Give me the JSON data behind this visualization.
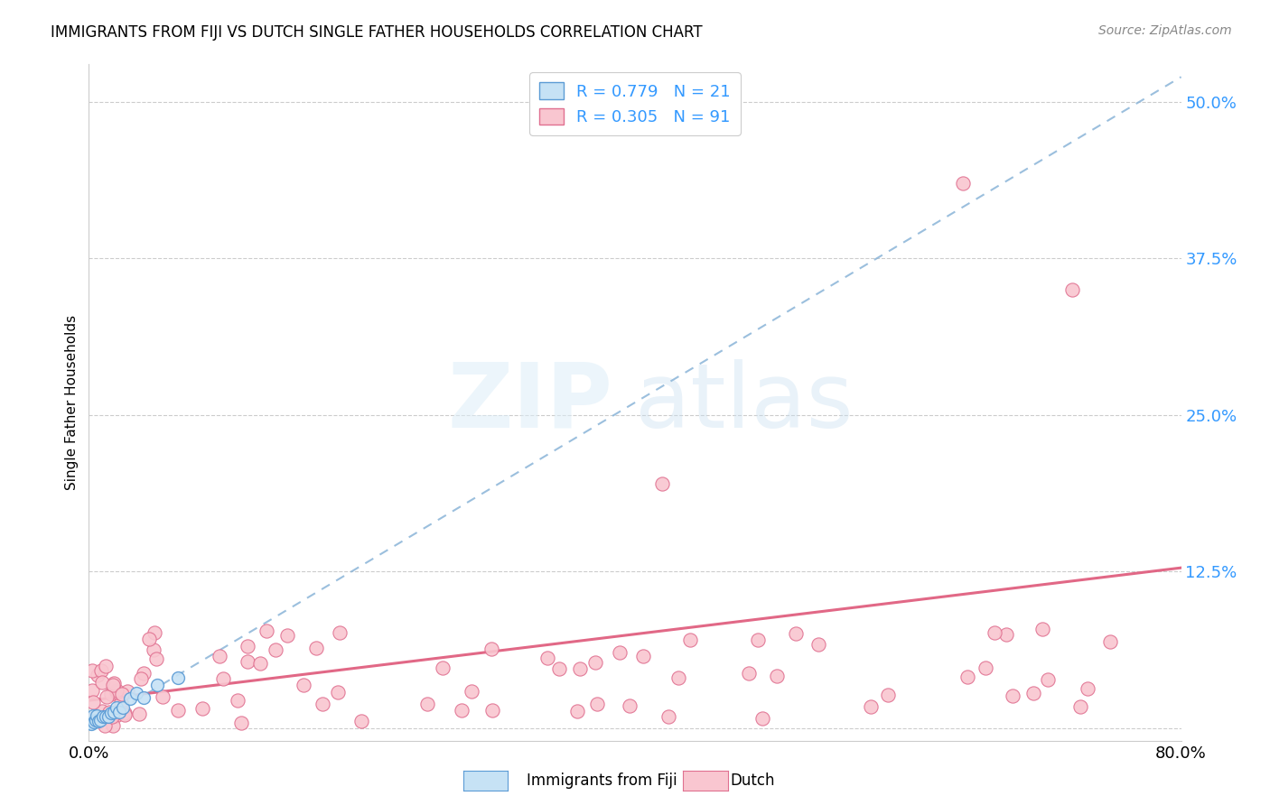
{
  "title": "IMMIGRANTS FROM FIJI VS DUTCH SINGLE FATHER HOUSEHOLDS CORRELATION CHART",
  "source": "Source: ZipAtlas.com",
  "ylabel": "Single Father Households",
  "fiji_R": "0.779",
  "fiji_N": "21",
  "dutch_R": "0.305",
  "dutch_N": "91",
  "fiji_color": "#c6e2f5",
  "fiji_edge_color": "#5b9bd5",
  "dutch_color": "#f9c6d0",
  "dutch_edge_color": "#e07090",
  "trend_fiji_color": "#8ab4d8",
  "trend_dutch_color": "#e06080",
  "xlim": [
    0.0,
    80.0
  ],
  "ylim": [
    -1.0,
    53.0
  ],
  "ytick_values": [
    0.0,
    12.5,
    25.0,
    37.5,
    50.0
  ],
  "ytick_labels": [
    "",
    "12.5%",
    "25.0%",
    "37.5%",
    "50.0%"
  ],
  "grid_color": "#cccccc",
  "background": "#ffffff",
  "legend_box_color": "#f0f0f0",
  "fiji_trend_start_x": 0.0,
  "fiji_trend_start_y": 0.0,
  "fiji_trend_end_x": 80.0,
  "fiji_trend_end_y": 52.0,
  "dutch_trend_start_x": 0.0,
  "dutch_trend_start_y": 2.2,
  "dutch_trend_end_x": 80.0,
  "dutch_trend_end_y": 12.8,
  "watermark_zip": "ZIP",
  "watermark_atlas": "atlas",
  "bottom_legend_fiji": "Immigrants from Fiji",
  "bottom_legend_dutch": "Dutch"
}
